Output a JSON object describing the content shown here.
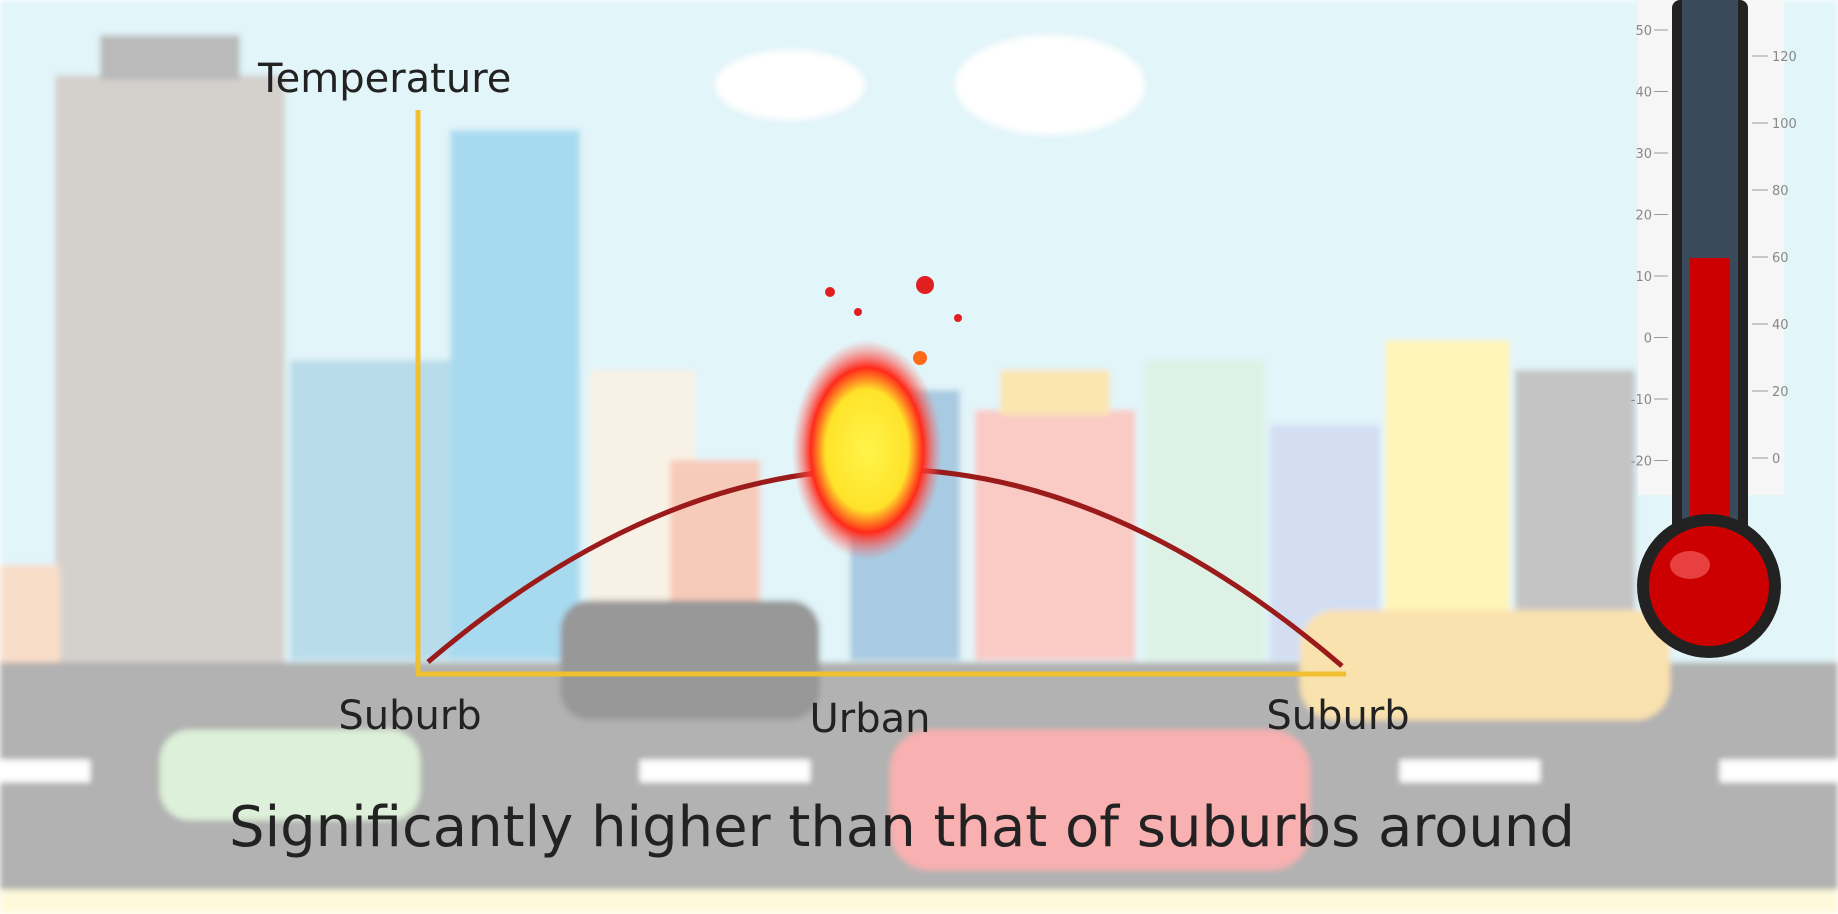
{
  "diagram": {
    "axis_label": "Temperature",
    "x_labels": [
      "Suburb",
      "Urban",
      "Suburb"
    ],
    "caption": "Significantly higher than that of suburbs around",
    "thermometer": {
      "celsius_labels": [
        "50",
        "40",
        "30",
        "20",
        "10",
        "0",
        "-10",
        "-20"
      ],
      "fahrenheit_labels": [
        "120",
        "100",
        "80",
        "60",
        "40",
        "20",
        "0"
      ]
    }
  }
}
